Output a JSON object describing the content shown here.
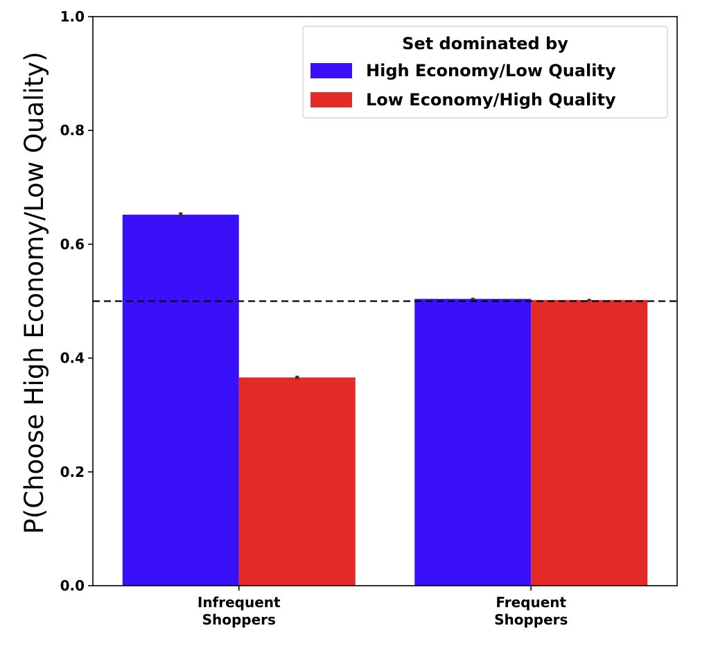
{
  "chart_data": {
    "type": "bar",
    "title": "",
    "xlabel": "",
    "ylabel": "P(Choose High Economy/Low Quality)",
    "ylim": [
      0,
      1.0
    ],
    "yticks": [
      0.0,
      0.2,
      0.4,
      0.6,
      0.8,
      1.0
    ],
    "ytick_labels": [
      "0.0",
      "0.2",
      "0.4",
      "0.6",
      "0.8",
      "1.0"
    ],
    "categories": [
      [
        "Infrequent",
        "Shoppers"
      ],
      [
        "Frequent",
        "Shoppers"
      ]
    ],
    "series": [
      {
        "name": "High Economy/Low Quality",
        "color": "#3a10fb",
        "values": [
          0.652,
          0.504
        ],
        "errors": [
          0.004,
          0.002
        ]
      },
      {
        "name": "Low Economy/High Quality",
        "color": "#e32a26",
        "values": [
          0.366,
          0.502
        ],
        "errors": [
          0.003,
          0.002
        ]
      }
    ],
    "reference_line": {
      "y": 0.5,
      "style": "dashed",
      "color": "#000000"
    },
    "legend": {
      "title": "Set dominated by",
      "position": "top-right"
    },
    "grid": false
  }
}
